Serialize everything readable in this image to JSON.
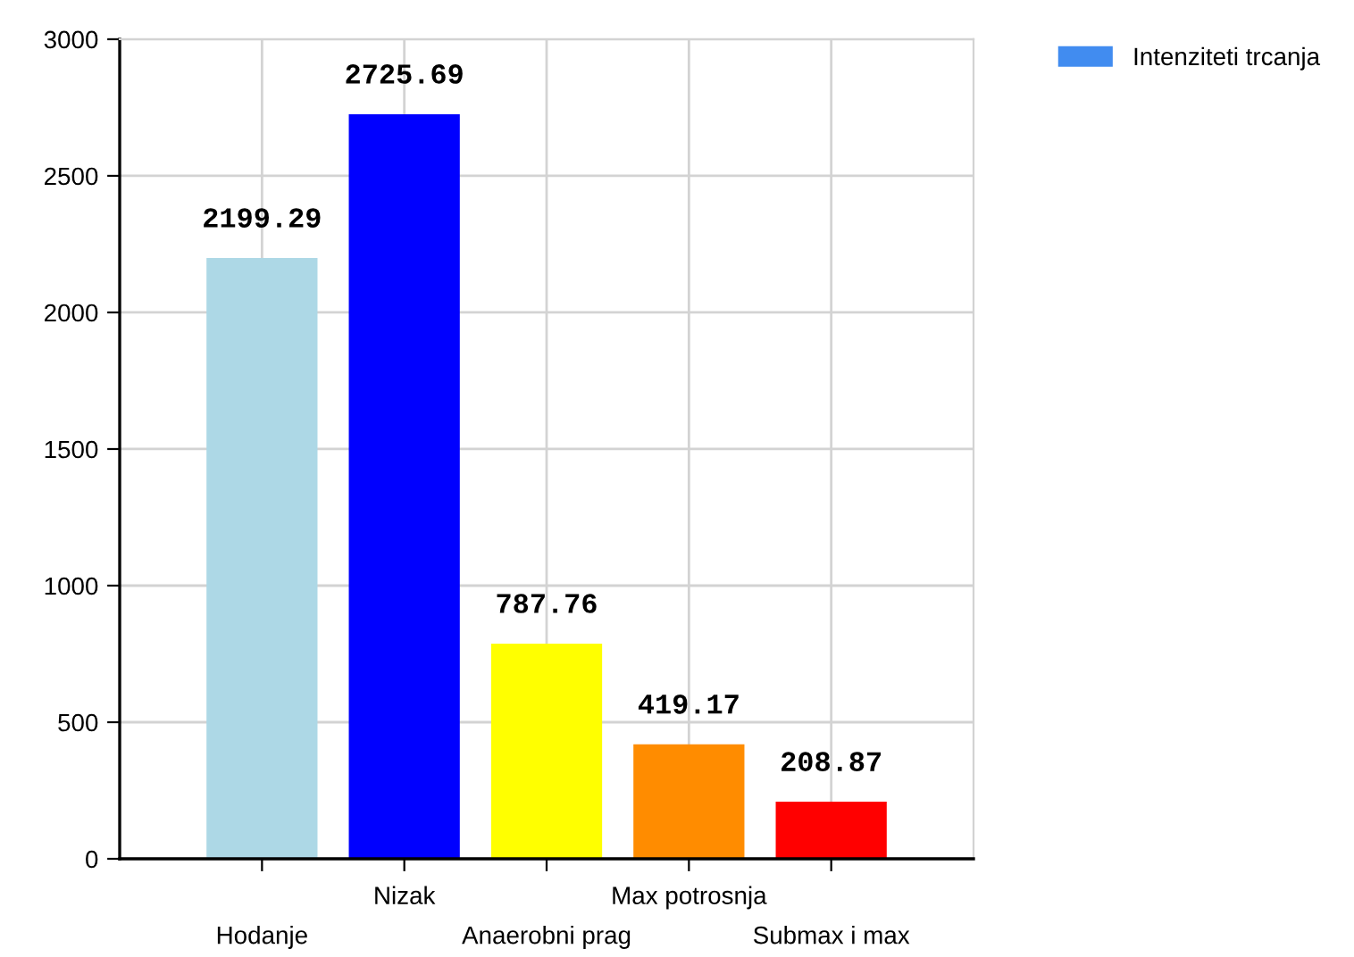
{
  "chart_data": {
    "type": "bar",
    "categories": [
      "Hodanje",
      "Nizak",
      "Anaerobni prag",
      "Max potrosnja",
      "Submax i max"
    ],
    "series": [
      {
        "name": "Intenziteti trcanja",
        "color": "#418cf0",
        "colors": [
          "#add8e6",
          "#0000ff",
          "#ffff00",
          "#ff8c00",
          "#ff0000"
        ],
        "values": [
          2199.29,
          2725.69,
          787.76,
          419.17,
          208.87
        ]
      }
    ],
    "ylim": [
      0,
      3000
    ],
    "yticks": [
      0,
      500,
      1000,
      1500,
      2000,
      2500,
      3000
    ],
    "grid": true,
    "legend": "top right",
    "data_labels": true
  }
}
